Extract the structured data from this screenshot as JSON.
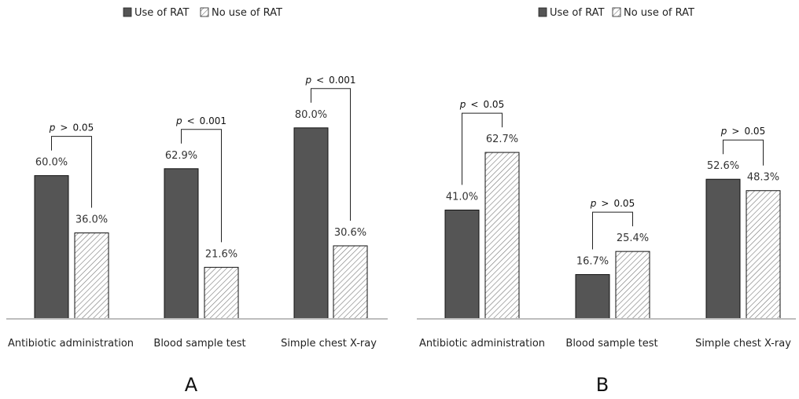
{
  "chart_data": [
    {
      "type": "bar",
      "panel_label": "A",
      "categories": [
        "Antibiotic administration",
        "Blood sample test",
        "Simple chest X-ray"
      ],
      "series": [
        {
          "name": "Use of RAT",
          "values": [
            60.0,
            62.9,
            80.0
          ],
          "labels": [
            "60.0%",
            "62.9%",
            "80.0%"
          ],
          "color": "#555555",
          "pattern": "solid"
        },
        {
          "name": "No use of RAT",
          "values": [
            36.0,
            21.6,
            30.6
          ],
          "labels": [
            "36.0%",
            "21.6%",
            "30.6%"
          ],
          "color": "#ffffff",
          "pattern": "hatched"
        }
      ],
      "annotations": [
        {
          "category": "Antibiotic administration",
          "p": "p",
          "op": ">",
          "value": "0.05"
        },
        {
          "category": "Blood sample test",
          "p": "p",
          "op": "<",
          "value": "0.001"
        },
        {
          "category": "Simple chest X-ray",
          "p": "p",
          "op": "<",
          "value": "0.001"
        }
      ],
      "legend_position": "top",
      "ylim": [
        0,
        100
      ],
      "grid": false,
      "xlabel": "",
      "ylabel": ""
    },
    {
      "type": "bar",
      "panel_label": "B",
      "categories": [
        "Antibiotic administration",
        "Blood sample test",
        "Simple chest X-ray"
      ],
      "series": [
        {
          "name": "Use of RAT",
          "values": [
            41.0,
            16.7,
            52.6
          ],
          "labels": [
            "41.0%",
            "16.7%",
            "52.6%"
          ],
          "color": "#555555",
          "pattern": "solid"
        },
        {
          "name": "No use of RAT",
          "values": [
            62.7,
            25.4,
            48.3
          ],
          "labels": [
            "62.7%",
            "25.4%",
            "48.3%"
          ],
          "color": "#ffffff",
          "pattern": "hatched"
        }
      ],
      "annotations": [
        {
          "category": "Antibiotic administration",
          "p": "p",
          "op": "<",
          "value": "0.05"
        },
        {
          "category": "Blood sample test",
          "p": "p",
          "op": ">",
          "value": "0.05"
        },
        {
          "category": "Simple chest X-ray",
          "p": "p",
          "op": ">",
          "value": "0.05"
        }
      ],
      "legend_position": "top",
      "ylim": [
        0,
        100
      ],
      "grid": false,
      "xlabel": "",
      "ylabel": ""
    }
  ]
}
